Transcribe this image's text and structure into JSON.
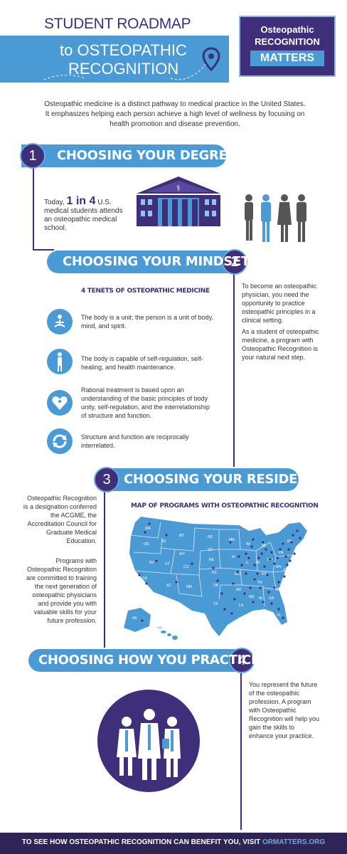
{
  "header": {
    "title_line1": "STUDENT ROADMAP",
    "title_line2": "to OSTEOPATHIC",
    "title_line3": "RECOGNITION",
    "logo_line1": "Osteopathic",
    "logo_line2": "RECOGNITION",
    "logo_line3": "MATTERS"
  },
  "intro": "Osteopathic medicine is a distinct pathway to medical practice in the United States. It emphasizes helping each person achieve a high level of wellness by focusing on health promotion and disease prevention.",
  "step1": {
    "number": "1",
    "title": "CHOOSING YOUR DEGREE",
    "text_prefix": "Today,",
    "stat": "1 in 4",
    "stat_suffix": "U.S.",
    "text_rest": "medical students attends an osteopathic medical school."
  },
  "step2": {
    "number": "2",
    "title": "CHOOSING YOUR MINDSET",
    "tenets_heading": "4 TENETS OF OSTEOPATHIC MEDICINE",
    "tenets": [
      {
        "icon": "meditation-icon",
        "text": "The body is a unit; the person is a unit of body, mind, and spirit."
      },
      {
        "icon": "body-figure-icon",
        "text": "The body is capable of self-regulation, self-healing, and health maintenance."
      },
      {
        "icon": "heart-care-icon",
        "text": "Rational treatment is based upon an understanding of the basic principles of body unity, self-regulation, and the interrelationship of structure and function."
      },
      {
        "icon": "cycle-arrows-icon",
        "text": "Structure and function are reciprocally interrelated."
      }
    ],
    "side_text_1": "To become an osteopathic physician, you need the opportunity to practice osteopathic principles in a clinical setting.",
    "side_text_2": "As a student of osteopathic medicine, a program with Osteopathic Recognition is your natural next step."
  },
  "step3": {
    "number": "3",
    "title": "CHOOSING YOUR RESIDENCY",
    "map_heading": "MAP OF PROGRAMS WITH OSTEOPATHIC RECOGNITION",
    "side_text_1": "Osteopathic Recognition is a designation conferred the ACGME, the Accreditation Council for Graduate Medical Education.",
    "side_text_2": "Programs with Osteopathic Recognition are committed to training the next generation of osteopathic physicians and provide you with valuable skills for your future profession.",
    "state_labels": [
      "WA",
      "OR",
      "ID",
      "MT",
      "WY",
      "NV",
      "UT",
      "CO",
      "CA",
      "AZ",
      "NM",
      "ND",
      "SD",
      "NE",
      "KS",
      "OK",
      "TX",
      "MN",
      "IA",
      "MO",
      "AR",
      "LA",
      "WI",
      "IL",
      "MS",
      "AL",
      "GA",
      "FL",
      "TN",
      "KY",
      "IN",
      "OH",
      "MI",
      "PA",
      "NY",
      "WV",
      "VA",
      "NC",
      "SC",
      "AK",
      "HI"
    ]
  },
  "step4": {
    "number": "4",
    "title": "CHOOSING HOW YOU PRACTICE",
    "side_text": "You represent the future of the osteopathic profession. A program with Osteopathic Recognition will help you gain the skills to enhance your practice."
  },
  "footer": {
    "text": "TO SEE HOW OSTEOPATHIC RECOGNITION CAN BENEFIT YOU, VISIT",
    "link": "ORMATTERS.ORG"
  },
  "colors": {
    "purple": "#3f2e7a",
    "blue": "#4a9ad6",
    "light_blue": "#e3eef8",
    "footer_bg": "#2e2555"
  }
}
